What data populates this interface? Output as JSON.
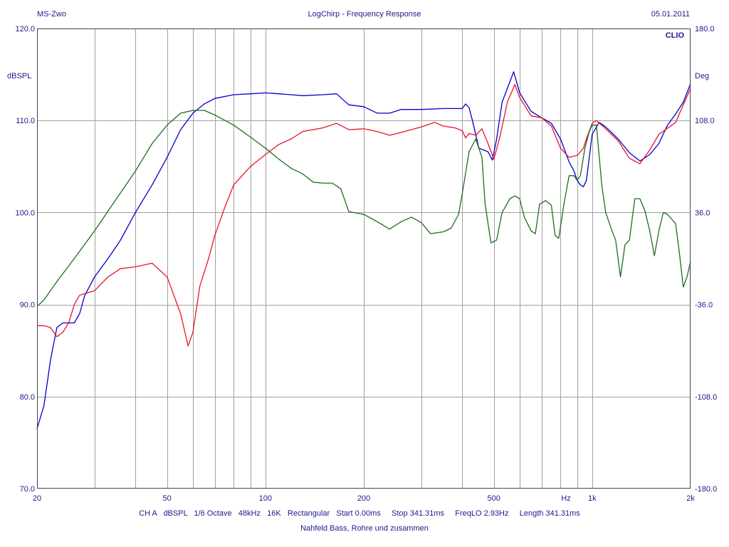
{
  "header": {
    "left": "MS-Zwo",
    "center": "LogChirp - Frequency Response",
    "right": "05.01.2011",
    "brand": "CLIO"
  },
  "footer": {
    "settings": "CH A   dBSPL   1/6 Octave   48kHz   16K   Rectangular   Start 0.00ms     Stop 341.31ms     FreqLO 2.93Hz     Length 341.31ms",
    "caption": "Nahfeld Bass, Rohre und zusammen"
  },
  "colors": {
    "axis_text": "#1a1a8c",
    "grid": "#a0a0a0",
    "blue": "#0000cc",
    "red": "#e8132b",
    "green": "#1e6e1e"
  },
  "chart_data": {
    "type": "line",
    "xscale": "log",
    "xlim": [
      20,
      2000
    ],
    "ylim": [
      70,
      120
    ],
    "ylim_right": [
      -180,
      180
    ],
    "ylabel": "dBSPL",
    "ylabel_right": "Deg",
    "xunit_label": "Hz",
    "grid": true,
    "x_ticks": [
      {
        "value": 20,
        "label": "20"
      },
      {
        "value": 50,
        "label": "50"
      },
      {
        "value": 100,
        "label": "100"
      },
      {
        "value": 200,
        "label": "200"
      },
      {
        "value": 500,
        "label": "500"
      },
      {
        "value": 1000,
        "label": "1k"
      },
      {
        "value": 2000,
        "label": "2k"
      }
    ],
    "y_ticks": [
      {
        "value": 120,
        "label": "120.0"
      },
      {
        "value": 110,
        "label": "110.0"
      },
      {
        "value": 100,
        "label": "100.0"
      },
      {
        "value": 90,
        "label": "90.0"
      },
      {
        "value": 80,
        "label": "80.0"
      },
      {
        "value": 70,
        "label": "70.0"
      }
    ],
    "y_ticks_right": [
      {
        "value": 180,
        "label": "180.0"
      },
      {
        "value": 108,
        "label": "108.0"
      },
      {
        "value": 36,
        "label": "36.0"
      },
      {
        "value": -36,
        "label": "-36.0"
      },
      {
        "value": -108,
        "label": "-108.0"
      },
      {
        "value": -180,
        "label": "-180.0"
      }
    ],
    "series": [
      {
        "color": "#0000cc",
        "points": [
          [
            20,
            76.5
          ],
          [
            21,
            79
          ],
          [
            22,
            84
          ],
          [
            23,
            87.5
          ],
          [
            24,
            88
          ],
          [
            25,
            88
          ],
          [
            26,
            88
          ],
          [
            27,
            89
          ],
          [
            28,
            91
          ],
          [
            30,
            93
          ],
          [
            33,
            95
          ],
          [
            36,
            97
          ],
          [
            40,
            100
          ],
          [
            45,
            103
          ],
          [
            50,
            106
          ],
          [
            55,
            109
          ],
          [
            60,
            110.8
          ],
          [
            65,
            111.8
          ],
          [
            70,
            112.4
          ],
          [
            80,
            112.8
          ],
          [
            90,
            112.9
          ],
          [
            100,
            113
          ],
          [
            110,
            112.9
          ],
          [
            120,
            112.8
          ],
          [
            130,
            112.7
          ],
          [
            150,
            112.8
          ],
          [
            165,
            112.9
          ],
          [
            180,
            111.7
          ],
          [
            200,
            111.5
          ],
          [
            220,
            110.8
          ],
          [
            240,
            110.8
          ],
          [
            260,
            111.2
          ],
          [
            300,
            111.2
          ],
          [
            350,
            111.3
          ],
          [
            400,
            111.3
          ],
          [
            410,
            111.8
          ],
          [
            420,
            111.4
          ],
          [
            430,
            110
          ],
          [
            450,
            107
          ],
          [
            480,
            106.6
          ],
          [
            495,
            105.7
          ],
          [
            510,
            108
          ],
          [
            530,
            112
          ],
          [
            560,
            114.2
          ],
          [
            575,
            115.3
          ],
          [
            600,
            113
          ],
          [
            650,
            111
          ],
          [
            700,
            110.3
          ],
          [
            750,
            109.7
          ],
          [
            800,
            108
          ],
          [
            850,
            105.5
          ],
          [
            880,
            104.5
          ],
          [
            900,
            103.5
          ],
          [
            920,
            103
          ],
          [
            940,
            102.8
          ],
          [
            960,
            103.5
          ],
          [
            1000,
            108.5
          ],
          [
            1050,
            109.8
          ],
          [
            1100,
            109.3
          ],
          [
            1200,
            108
          ],
          [
            1300,
            106.5
          ],
          [
            1400,
            105.6
          ],
          [
            1500,
            106.3
          ],
          [
            1600,
            107.5
          ],
          [
            1700,
            109.5
          ],
          [
            1800,
            110.7
          ],
          [
            1900,
            112
          ],
          [
            2000,
            114
          ]
        ]
      },
      {
        "color": "#e8132b",
        "points": [
          [
            20,
            87.7
          ],
          [
            21,
            87.7
          ],
          [
            22,
            87.5
          ],
          [
            23,
            86.5
          ],
          [
            24,
            87
          ],
          [
            25,
            88
          ],
          [
            26,
            90
          ],
          [
            27,
            91
          ],
          [
            28,
            91.2
          ],
          [
            30,
            91.5
          ],
          [
            33,
            93
          ],
          [
            36,
            93.9
          ],
          [
            40,
            94.1
          ],
          [
            45,
            94.5
          ],
          [
            50,
            93
          ],
          [
            55,
            89
          ],
          [
            58,
            85.5
          ],
          [
            60,
            87
          ],
          [
            63,
            92
          ],
          [
            67,
            95
          ],
          [
            70,
            97.5
          ],
          [
            75,
            100.5
          ],
          [
            80,
            103
          ],
          [
            90,
            105
          ],
          [
            100,
            106.3
          ],
          [
            110,
            107.4
          ],
          [
            120,
            108
          ],
          [
            130,
            108.8
          ],
          [
            150,
            109.2
          ],
          [
            165,
            109.7
          ],
          [
            180,
            109
          ],
          [
            200,
            109.1
          ],
          [
            220,
            108.8
          ],
          [
            240,
            108.4
          ],
          [
            260,
            108.7
          ],
          [
            300,
            109.3
          ],
          [
            330,
            109.8
          ],
          [
            350,
            109.4
          ],
          [
            380,
            109.2
          ],
          [
            400,
            108.9
          ],
          [
            410,
            108.1
          ],
          [
            420,
            108.6
          ],
          [
            440,
            108.4
          ],
          [
            460,
            109.1
          ],
          [
            480,
            107.5
          ],
          [
            500,
            105.8
          ],
          [
            520,
            108
          ],
          [
            550,
            112
          ],
          [
            580,
            113.9
          ],
          [
            600,
            112.5
          ],
          [
            650,
            110.5
          ],
          [
            700,
            110.3
          ],
          [
            750,
            109.4
          ],
          [
            800,
            107
          ],
          [
            850,
            106
          ],
          [
            900,
            106.2
          ],
          [
            940,
            107
          ],
          [
            960,
            108
          ],
          [
            1000,
            109.7
          ],
          [
            1030,
            110
          ],
          [
            1100,
            109.1
          ],
          [
            1200,
            107.8
          ],
          [
            1300,
            105.9
          ],
          [
            1400,
            105.3
          ],
          [
            1500,
            106.8
          ],
          [
            1600,
            108.5
          ],
          [
            1800,
            109.8
          ],
          [
            2000,
            113.5
          ]
        ]
      },
      {
        "color": "#1e6e1e",
        "points": [
          [
            20,
            89.8
          ],
          [
            21,
            90.5
          ],
          [
            23,
            92.5
          ],
          [
            26,
            95
          ],
          [
            30,
            98
          ],
          [
            35,
            101.5
          ],
          [
            40,
            104.5
          ],
          [
            45,
            107.5
          ],
          [
            50,
            109.5
          ],
          [
            55,
            110.8
          ],
          [
            60,
            111.1
          ],
          [
            65,
            111.1
          ],
          [
            70,
            110.6
          ],
          [
            80,
            109.5
          ],
          [
            90,
            108.2
          ],
          [
            100,
            107
          ],
          [
            110,
            105.8
          ],
          [
            120,
            104.8
          ],
          [
            130,
            104.2
          ],
          [
            140,
            103.3
          ],
          [
            150,
            103.2
          ],
          [
            160,
            103.2
          ],
          [
            170,
            102.6
          ],
          [
            180,
            100.1
          ],
          [
            200,
            99.8
          ],
          [
            220,
            99
          ],
          [
            240,
            98.2
          ],
          [
            260,
            99
          ],
          [
            280,
            99.5
          ],
          [
            300,
            98.9
          ],
          [
            320,
            97.7
          ],
          [
            350,
            97.9
          ],
          [
            370,
            98.3
          ],
          [
            390,
            99.8
          ],
          [
            400,
            102
          ],
          [
            420,
            106.6
          ],
          [
            440,
            108
          ],
          [
            460,
            106
          ],
          [
            470,
            101
          ],
          [
            490,
            96.7
          ],
          [
            510,
            97
          ],
          [
            530,
            100
          ],
          [
            560,
            101.5
          ],
          [
            580,
            101.8
          ],
          [
            600,
            101.5
          ],
          [
            620,
            99.5
          ],
          [
            650,
            98
          ],
          [
            670,
            97.7
          ],
          [
            690,
            100.9
          ],
          [
            720,
            101.3
          ],
          [
            750,
            100.8
          ],
          [
            770,
            97.5
          ],
          [
            790,
            97.2
          ],
          [
            820,
            101
          ],
          [
            850,
            104
          ],
          [
            880,
            104
          ],
          [
            900,
            103.5
          ],
          [
            920,
            104
          ],
          [
            950,
            107
          ],
          [
            980,
            108.8
          ],
          [
            1000,
            109.5
          ],
          [
            1030,
            109.5
          ],
          [
            1070,
            103
          ],
          [
            1100,
            100
          ],
          [
            1150,
            98
          ],
          [
            1180,
            97
          ],
          [
            1220,
            93
          ],
          [
            1260,
            96.5
          ],
          [
            1300,
            97
          ],
          [
            1350,
            101.5
          ],
          [
            1400,
            101.5
          ],
          [
            1450,
            100.2
          ],
          [
            1500,
            98
          ],
          [
            1550,
            95.3
          ],
          [
            1600,
            98
          ],
          [
            1650,
            100
          ],
          [
            1700,
            99.8
          ],
          [
            1800,
            98.8
          ],
          [
            1850,
            95.5
          ],
          [
            1900,
            91.9
          ],
          [
            1950,
            93
          ],
          [
            2000,
            94.7
          ]
        ]
      }
    ]
  }
}
